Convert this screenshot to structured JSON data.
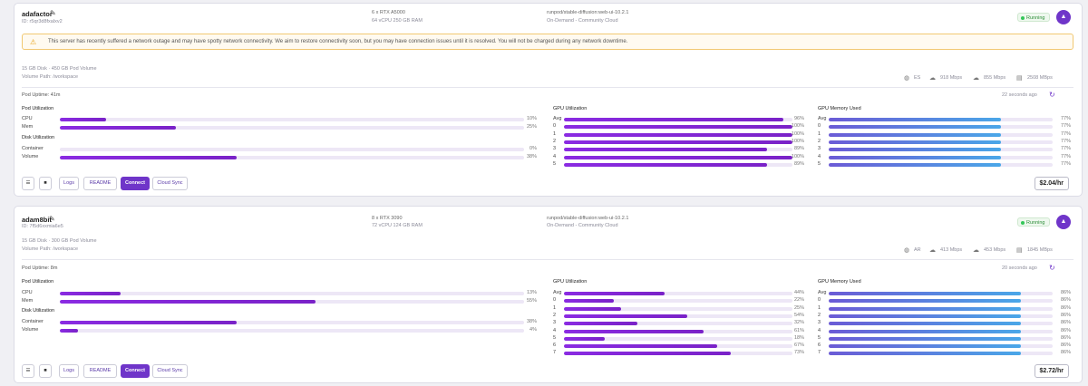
{
  "colors": {
    "accent": "#6f35c9",
    "running": "#34c759",
    "bar_purple": "#7a22c8",
    "bar_blue": "#4aa7e8",
    "warning": "#e8a31b"
  },
  "pods": [
    {
      "name": "adafactor",
      "id": "ID: r5qr3d8fxalxv2",
      "gpu_line": "6 x RTX A5000",
      "spec_line": "64 vCPU 250 GB RAM",
      "image": "runpod/stable-diffusion:web-ui-10.2.1",
      "cloud": "On-Demand - Community Cloud",
      "status": "Running",
      "warning": "This server has recently suffered a network outage and may have spotty network connectivity. We aim to restore connectivity soon, but you may have connection issues until it is resolved. You will not be charged during any network downtime.",
      "disk": "15 GB Disk · 450 GB Pod Volume",
      "volume_path": "Volume Path: /workspace",
      "region": "ES",
      "download": "918 Mbps",
      "upload": "855 Mbps",
      "disk_speed": "2508 MBps",
      "uptime": "Pod Uptime: 41m",
      "updated": "22 seconds ago",
      "pod_util": [
        {
          "label": "CPU",
          "pct": "10%",
          "value": 10
        },
        {
          "label": "Mem",
          "pct": "25%",
          "value": 25
        }
      ],
      "disk_util": [
        {
          "label": "Container",
          "pct": "0%",
          "value": 0
        },
        {
          "label": "Volume",
          "pct": "38%",
          "value": 38
        }
      ],
      "gpu_util": [
        {
          "label": "Avg",
          "pct": "96%",
          "value": 96,
          "color": "purple"
        },
        {
          "label": "0",
          "pct": "100%",
          "value": 100,
          "color": "purple"
        },
        {
          "label": "1",
          "pct": "100%",
          "value": 100,
          "color": "purple"
        },
        {
          "label": "2",
          "pct": "100%",
          "value": 100,
          "color": "purple"
        },
        {
          "label": "3",
          "pct": "89%",
          "value": 89,
          "color": "purple"
        },
        {
          "label": "4",
          "pct": "100%",
          "value": 100,
          "color": "purple"
        },
        {
          "label": "5",
          "pct": "89%",
          "value": 89,
          "color": "purple"
        }
      ],
      "gpu_mem": [
        {
          "label": "Avg",
          "pct": "77%",
          "value": 77
        },
        {
          "label": "0",
          "pct": "77%",
          "value": 77
        },
        {
          "label": "1",
          "pct": "77%",
          "value": 77
        },
        {
          "label": "2",
          "pct": "77%",
          "value": 77
        },
        {
          "label": "3",
          "pct": "77%",
          "value": 77
        },
        {
          "label": "4",
          "pct": "77%",
          "value": 77
        },
        {
          "label": "5",
          "pct": "77%",
          "value": 77
        }
      ],
      "price": "$2.04/hr"
    },
    {
      "name": "adam8bit",
      "id": "ID: 7f5d6xxmia6e5",
      "gpu_line": "8 x RTX 3090",
      "spec_line": "72 vCPU 124 GB RAM",
      "image": "runpod/stable-diffusion:web-ui-10.2.1",
      "cloud": "On-Demand - Community Cloud",
      "status": "Running",
      "disk": "15 GB Disk · 300 GB Pod Volume",
      "volume_path": "Volume Path: /workspace",
      "region": "AR",
      "download": "413 Mbps",
      "upload": "453 Mbps",
      "disk_speed": "1845 MBps",
      "uptime": "Pod Uptime: 8m",
      "updated": "20 seconds ago",
      "pod_util": [
        {
          "label": "CPU",
          "pct": "13%",
          "value": 13
        },
        {
          "label": "Mem",
          "pct": "55%",
          "value": 55
        }
      ],
      "disk_util": [
        {
          "label": "Container",
          "pct": "38%",
          "value": 38
        },
        {
          "label": "Volume",
          "pct": "4%",
          "value": 4
        }
      ],
      "gpu_util": [
        {
          "label": "Avg",
          "pct": "44%",
          "value": 44,
          "color": "purple"
        },
        {
          "label": "0",
          "pct": "22%",
          "value": 22,
          "color": "purple"
        },
        {
          "label": "1",
          "pct": "25%",
          "value": 25,
          "color": "purple"
        },
        {
          "label": "2",
          "pct": "54%",
          "value": 54,
          "color": "purple"
        },
        {
          "label": "3",
          "pct": "32%",
          "value": 32,
          "color": "purple"
        },
        {
          "label": "4",
          "pct": "61%",
          "value": 61,
          "color": "purple"
        },
        {
          "label": "5",
          "pct": "18%",
          "value": 18,
          "color": "purple"
        },
        {
          "label": "6",
          "pct": "67%",
          "value": 67,
          "color": "purple"
        },
        {
          "label": "7",
          "pct": "73%",
          "value": 73,
          "color": "purple"
        }
      ],
      "gpu_mem": [
        {
          "label": "Avg",
          "pct": "86%",
          "value": 86
        },
        {
          "label": "0",
          "pct": "86%",
          "value": 86
        },
        {
          "label": "1",
          "pct": "86%",
          "value": 86
        },
        {
          "label": "2",
          "pct": "86%",
          "value": 86
        },
        {
          "label": "3",
          "pct": "86%",
          "value": 86
        },
        {
          "label": "4",
          "pct": "86%",
          "value": 86
        },
        {
          "label": "5",
          "pct": "86%",
          "value": 86
        },
        {
          "label": "6",
          "pct": "86%",
          "value": 86
        },
        {
          "label": "7",
          "pct": "86%",
          "value": 86
        }
      ],
      "price": "$2.72/hr"
    }
  ],
  "labels": {
    "pod_util_title": "Pod Utilization",
    "disk_util_title": "Disk Utilization",
    "gpu_util_title": "GPU Utilization",
    "gpu_mem_title": "GPU Memory Used",
    "logs": "Logs",
    "readme": "README",
    "connect": "Connect",
    "cloud_sync": "Cloud Sync"
  }
}
